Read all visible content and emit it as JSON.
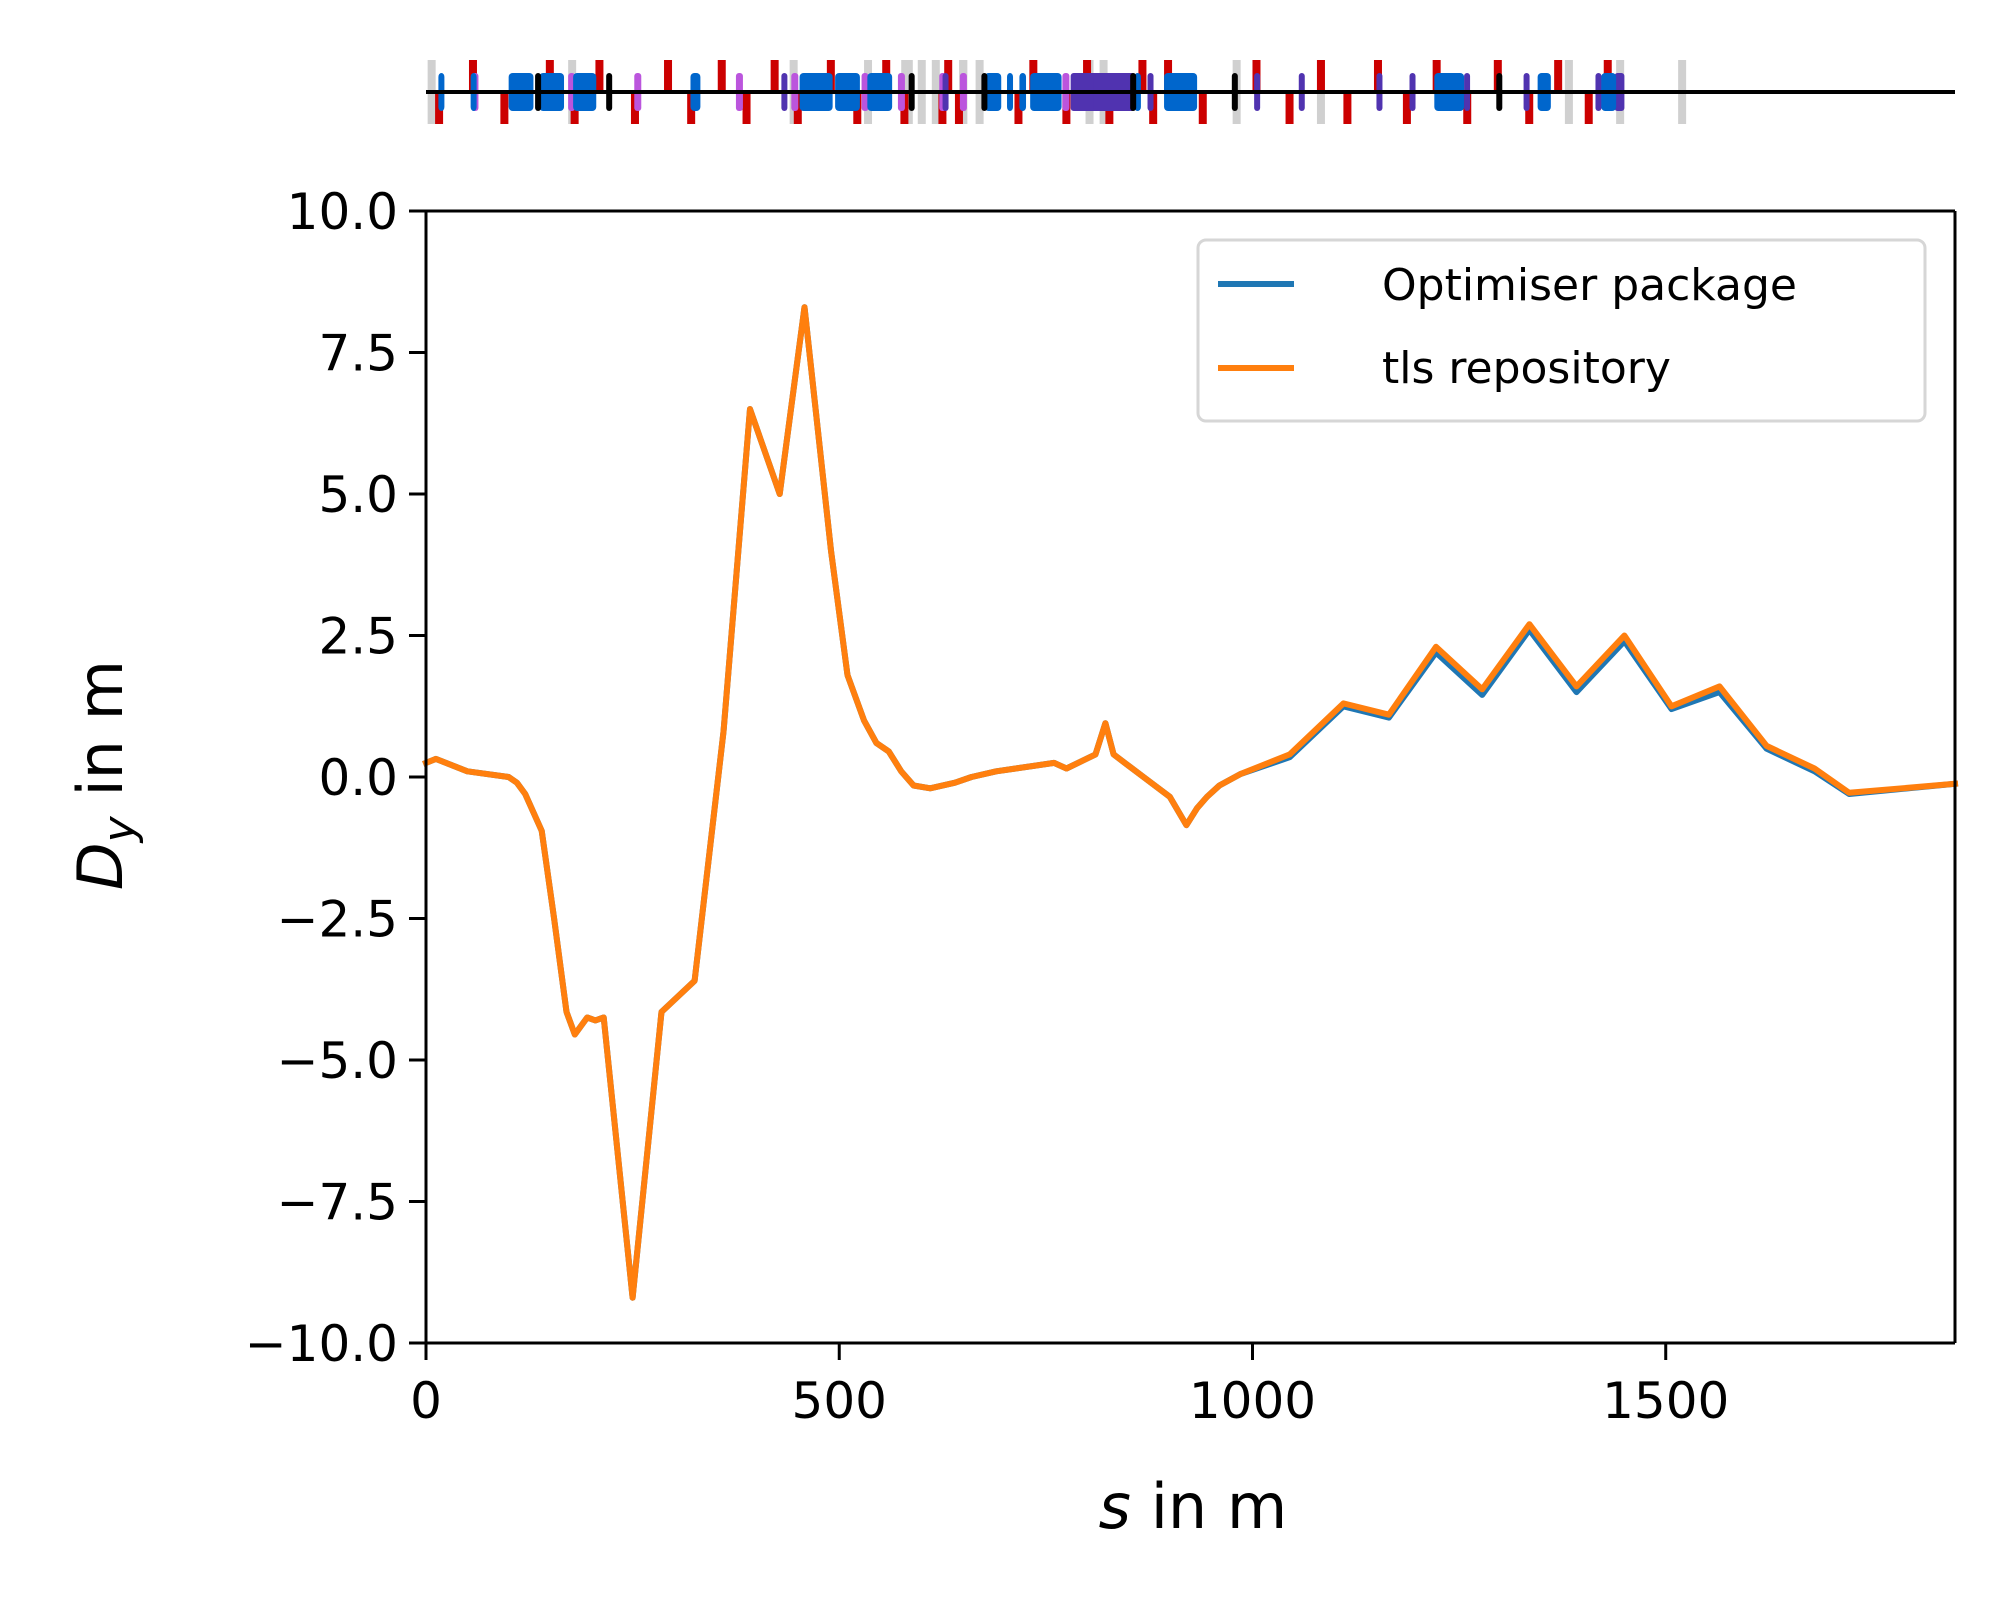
{
  "chart_data": {
    "type": "line",
    "title": "",
    "xlabel_var": "s",
    "xlabel_rest": " in m",
    "ylabel_var": "D",
    "ylabel_sub": "y",
    "ylabel_rest": " in m",
    "xlim": [
      0,
      1850
    ],
    "ylim": [
      -10,
      10
    ],
    "grid": false,
    "legend_position": "top-right",
    "xticks": [
      0,
      500,
      1000,
      1500
    ],
    "xtick_labels": [
      "0",
      "500",
      "1000",
      "1500"
    ],
    "yticks": [
      10,
      7.5,
      5,
      2.5,
      0,
      -2.5,
      -5,
      -7.5,
      -10
    ],
    "ytick_labels": [
      "10.0",
      "7.5",
      "5.0",
      "2.5",
      "0.0",
      "−2.5",
      "−5.0",
      "−7.5",
      "−10.0"
    ],
    "series": [
      {
        "name": "Optimiser package",
        "color": "#1f77b4",
        "x": [
          0,
          12,
          50,
          100,
          110,
          120,
          140,
          155,
          170,
          180,
          195,
          205,
          215,
          250,
          285,
          325,
          360,
          392,
          428,
          458,
          490,
          510,
          530,
          545,
          560,
          575,
          590,
          610,
          640,
          660,
          690,
          760,
          775,
          810,
          822,
          832,
          850,
          900,
          920,
          933,
          945,
          960,
          985,
          1045,
          1110,
          1165,
          1222,
          1278,
          1335,
          1392,
          1450,
          1507,
          1565,
          1622,
          1680,
          1722,
          1850
        ],
        "y": [
          0.25,
          0.32,
          0.1,
          0.0,
          -0.1,
          -0.3,
          -0.95,
          -2.5,
          -4.15,
          -4.55,
          -4.25,
          -4.3,
          -4.25,
          -9.2,
          -4.15,
          -3.6,
          0.8,
          6.5,
          5.0,
          8.3,
          4.0,
          1.8,
          1.0,
          0.6,
          0.45,
          0.1,
          -0.15,
          -0.2,
          -0.1,
          0.0,
          0.1,
          0.25,
          0.15,
          0.4,
          0.95,
          0.4,
          0.2,
          -0.35,
          -0.85,
          -0.55,
          -0.35,
          -0.15,
          0.05,
          0.35,
          1.25,
          1.05,
          2.2,
          1.45,
          2.6,
          1.5,
          2.4,
          1.2,
          1.5,
          0.5,
          0.1,
          -0.3,
          -0.12
        ]
      },
      {
        "name": "tls repository",
        "color": "#ff7f0e",
        "x": [
          0,
          12,
          50,
          100,
          110,
          120,
          140,
          155,
          170,
          180,
          195,
          205,
          215,
          250,
          285,
          325,
          360,
          392,
          428,
          458,
          490,
          510,
          530,
          545,
          560,
          575,
          590,
          610,
          640,
          660,
          690,
          760,
          775,
          810,
          822,
          832,
          850,
          900,
          920,
          933,
          945,
          960,
          985,
          1045,
          1110,
          1165,
          1222,
          1278,
          1335,
          1392,
          1450,
          1507,
          1565,
          1622,
          1680,
          1722,
          1850
        ],
        "y": [
          0.25,
          0.32,
          0.1,
          0.0,
          -0.1,
          -0.3,
          -0.95,
          -2.5,
          -4.15,
          -4.55,
          -4.25,
          -4.3,
          -4.25,
          -9.2,
          -4.15,
          -3.6,
          0.8,
          6.5,
          5.0,
          8.3,
          4.0,
          1.8,
          1.0,
          0.6,
          0.45,
          0.1,
          -0.15,
          -0.2,
          -0.1,
          0.0,
          0.1,
          0.25,
          0.15,
          0.4,
          0.95,
          0.4,
          0.2,
          -0.35,
          -0.85,
          -0.55,
          -0.35,
          -0.15,
          0.05,
          0.4,
          1.3,
          1.1,
          2.3,
          1.55,
          2.7,
          1.6,
          2.5,
          1.25,
          1.6,
          0.55,
          0.15,
          -0.28,
          -0.12
        ]
      }
    ]
  },
  "lattice": {
    "colors": {
      "dipole": "#0066cc",
      "quadrupole": "#cc0000",
      "sextupole": "#bb55dd",
      "corrector": "#5033b0",
      "marker": "#000000",
      "drift": "#d0d0d0"
    },
    "elements": [
      {
        "type": "drift",
        "s": 2,
        "len": 3
      },
      {
        "type": "dipole",
        "s": 15,
        "len": 6
      },
      {
        "type": "quadrupole",
        "s": 52,
        "len": 5,
        "side": "up"
      },
      {
        "type": "sextupole",
        "s": 55,
        "len": 5
      },
      {
        "type": "dipole",
        "s": 54,
        "len": 5
      },
      {
        "type": "quadrupole",
        "s": 11,
        "len": 5,
        "side": "down"
      },
      {
        "type": "dipole",
        "s": 100,
        "len": 30
      },
      {
        "type": "quadrupole",
        "s": 90,
        "len": 5,
        "side": "down"
      },
      {
        "type": "marker",
        "s": 132,
        "len": 4
      },
      {
        "type": "dipole",
        "s": 137,
        "len": 30
      },
      {
        "type": "drift",
        "s": 172,
        "len": 8
      },
      {
        "type": "quadrupole",
        "s": 145,
        "len": 5,
        "side": "up"
      },
      {
        "type": "quadrupole",
        "s": 175,
        "len": 5,
        "side": "down"
      },
      {
        "type": "sextupole",
        "s": 172,
        "len": 4
      },
      {
        "type": "dipole",
        "s": 178,
        "len": 28
      },
      {
        "type": "quadrupole",
        "s": 205,
        "len": 5,
        "side": "up"
      },
      {
        "type": "marker",
        "s": 218,
        "len": 4
      },
      {
        "type": "sextupole",
        "s": 252,
        "len": 4
      },
      {
        "type": "quadrupole",
        "s": 248,
        "len": 5,
        "side": "down"
      },
      {
        "type": "quadrupole",
        "s": 288,
        "len": 5,
        "side": "up"
      },
      {
        "type": "dipole",
        "s": 320,
        "len": 12
      },
      {
        "type": "quadrupole",
        "s": 316,
        "len": 5,
        "side": "down"
      },
      {
        "type": "quadrupole",
        "s": 353,
        "len": 5,
        "side": "up"
      },
      {
        "type": "sextupole",
        "s": 375,
        "len": 4
      },
      {
        "type": "quadrupole",
        "s": 383,
        "len": 5,
        "side": "down"
      },
      {
        "type": "corrector",
        "s": 430,
        "len": 4
      },
      {
        "type": "quadrupole",
        "s": 417,
        "len": 5,
        "side": "up"
      },
      {
        "type": "drift",
        "s": 440,
        "len": 8
      },
      {
        "type": "sextupole",
        "s": 442,
        "len": 4
      },
      {
        "type": "quadrupole",
        "s": 445,
        "len": 5,
        "side": "down"
      },
      {
        "type": "dipole",
        "s": 452,
        "len": 40
      },
      {
        "type": "quadrupole",
        "s": 485,
        "len": 5,
        "side": "up"
      },
      {
        "type": "dipole",
        "s": 495,
        "len": 30
      },
      {
        "type": "sextupole",
        "s": 527,
        "len": 4
      },
      {
        "type": "quadrupole",
        "s": 517,
        "len": 5,
        "side": "down"
      },
      {
        "type": "drift",
        "s": 530,
        "len": 8
      },
      {
        "type": "dipole",
        "s": 534,
        "len": 30
      },
      {
        "type": "quadrupole",
        "s": 552,
        "len": 5,
        "side": "up"
      },
      {
        "type": "drift",
        "s": 575,
        "len": 14
      },
      {
        "type": "sextupole",
        "s": 571,
        "len": 4
      },
      {
        "type": "quadrupole",
        "s": 574,
        "len": 5,
        "side": "down"
      },
      {
        "type": "marker",
        "s": 584,
        "len": 4
      },
      {
        "type": "drift",
        "s": 595,
        "len": 8
      },
      {
        "type": "drift",
        "s": 612,
        "len": 8
      },
      {
        "type": "sextupole",
        "s": 621,
        "len": 4
      },
      {
        "type": "corrector",
        "s": 625,
        "len": 4
      },
      {
        "type": "quadrupole",
        "s": 627,
        "len": 5,
        "side": "up"
      },
      {
        "type": "quadrupole",
        "s": 620,
        "len": 5,
        "side": "down"
      },
      {
        "type": "drift",
        "s": 645,
        "len": 10
      },
      {
        "type": "sextupole",
        "s": 646,
        "len": 4
      },
      {
        "type": "quadrupole",
        "s": 640,
        "len": 5,
        "side": "down"
      },
      {
        "type": "marker",
        "s": 672,
        "len": 4
      },
      {
        "type": "dipole",
        "s": 676,
        "len": 20
      },
      {
        "type": "drift",
        "s": 665,
        "len": 8
      },
      {
        "type": "dipole",
        "s": 703,
        "len": 7
      },
      {
        "type": "dipole",
        "s": 718,
        "len": 8
      },
      {
        "type": "quadrupole",
        "s": 712,
        "len": 5,
        "side": "down"
      },
      {
        "type": "quadrupole",
        "s": 730,
        "len": 5,
        "side": "up"
      },
      {
        "type": "dipole",
        "s": 731,
        "len": 38
      },
      {
        "type": "sextupole",
        "s": 770,
        "len": 6
      },
      {
        "type": "quadrupole",
        "s": 770,
        "len": 5,
        "side": "down"
      },
      {
        "type": "quadrupole",
        "s": 795,
        "len": 5,
        "side": "up"
      },
      {
        "type": "corrector",
        "s": 780,
        "len": 60
      },
      {
        "type": "drift",
        "s": 798,
        "len": 8
      },
      {
        "type": "drift",
        "s": 815,
        "len": 6
      },
      {
        "type": "corrector",
        "s": 808,
        "len": 50
      },
      {
        "type": "quadrupole",
        "s": 822,
        "len": 5,
        "side": "down"
      },
      {
        "type": "marker",
        "s": 852,
        "len": 5
      },
      {
        "type": "dipole",
        "s": 857,
        "len": 8
      },
      {
        "type": "quadrupole",
        "s": 862,
        "len": 5,
        "side": "up"
      },
      {
        "type": "corrector",
        "s": 873,
        "len": 5
      },
      {
        "type": "quadrupole",
        "s": 875,
        "len": 5,
        "side": "down"
      },
      {
        "type": "quadrupole",
        "s": 893,
        "len": 5,
        "side": "up"
      },
      {
        "type": "dipole",
        "s": 893,
        "len": 40
      },
      {
        "type": "quadrupole",
        "s": 935,
        "len": 5,
        "side": "down"
      },
      {
        "type": "drift",
        "s": 976,
        "len": 6
      },
      {
        "type": "marker",
        "s": 975,
        "len": 5
      },
      {
        "type": "quadrupole",
        "s": 1000,
        "len": 5,
        "side": "up"
      },
      {
        "type": "corrector",
        "s": 1002,
        "len": 4
      },
      {
        "type": "quadrupole",
        "s": 1040,
        "len": 5,
        "side": "down"
      },
      {
        "type": "corrector",
        "s": 1056,
        "len": 4
      },
      {
        "type": "quadrupole",
        "s": 1078,
        "len": 5,
        "side": "up"
      },
      {
        "type": "drift",
        "s": 1078,
        "len": 6
      },
      {
        "type": "quadrupole",
        "s": 1110,
        "len": 5,
        "side": "down"
      },
      {
        "type": "quadrupole",
        "s": 1147,
        "len": 5,
        "side": "up"
      },
      {
        "type": "corrector",
        "s": 1150,
        "len": 4
      },
      {
        "type": "quadrupole",
        "s": 1182,
        "len": 5,
        "side": "down"
      },
      {
        "type": "corrector",
        "s": 1190,
        "len": 4
      },
      {
        "type": "quadrupole",
        "s": 1218,
        "len": 5,
        "side": "up"
      },
      {
        "type": "dipole",
        "s": 1220,
        "len": 36
      },
      {
        "type": "corrector",
        "s": 1256,
        "len": 4
      },
      {
        "type": "quadrupole",
        "s": 1255,
        "len": 5,
        "side": "down"
      },
      {
        "type": "quadrupole",
        "s": 1292,
        "len": 5,
        "side": "up"
      },
      {
        "type": "marker",
        "s": 1295,
        "len": 4
      },
      {
        "type": "corrector",
        "s": 1328,
        "len": 4
      },
      {
        "type": "quadrupole",
        "s": 1330,
        "len": 5,
        "side": "down"
      },
      {
        "type": "dipole",
        "s": 1345,
        "len": 16
      },
      {
        "type": "quadrupole",
        "s": 1365,
        "len": 5,
        "side": "up"
      },
      {
        "type": "drift",
        "s": 1378,
        "len": 8
      },
      {
        "type": "quadrupole",
        "s": 1402,
        "len": 5,
        "side": "down"
      },
      {
        "type": "corrector",
        "s": 1415,
        "len": 5
      },
      {
        "type": "quadrupole",
        "s": 1425,
        "len": 5,
        "side": "up"
      },
      {
        "type": "dipole",
        "s": 1422,
        "len": 18
      },
      {
        "type": "corrector",
        "s": 1438,
        "len": 12
      },
      {
        "type": "drift",
        "s": 1440,
        "len": 8
      },
      {
        "type": "drift",
        "s": 1515,
        "len": 8
      }
    ]
  },
  "legend": {
    "items": [
      {
        "label": "Optimiser package",
        "color": "#1f77b4"
      },
      {
        "label": "tls repository",
        "color": "#ff7f0e"
      }
    ]
  }
}
